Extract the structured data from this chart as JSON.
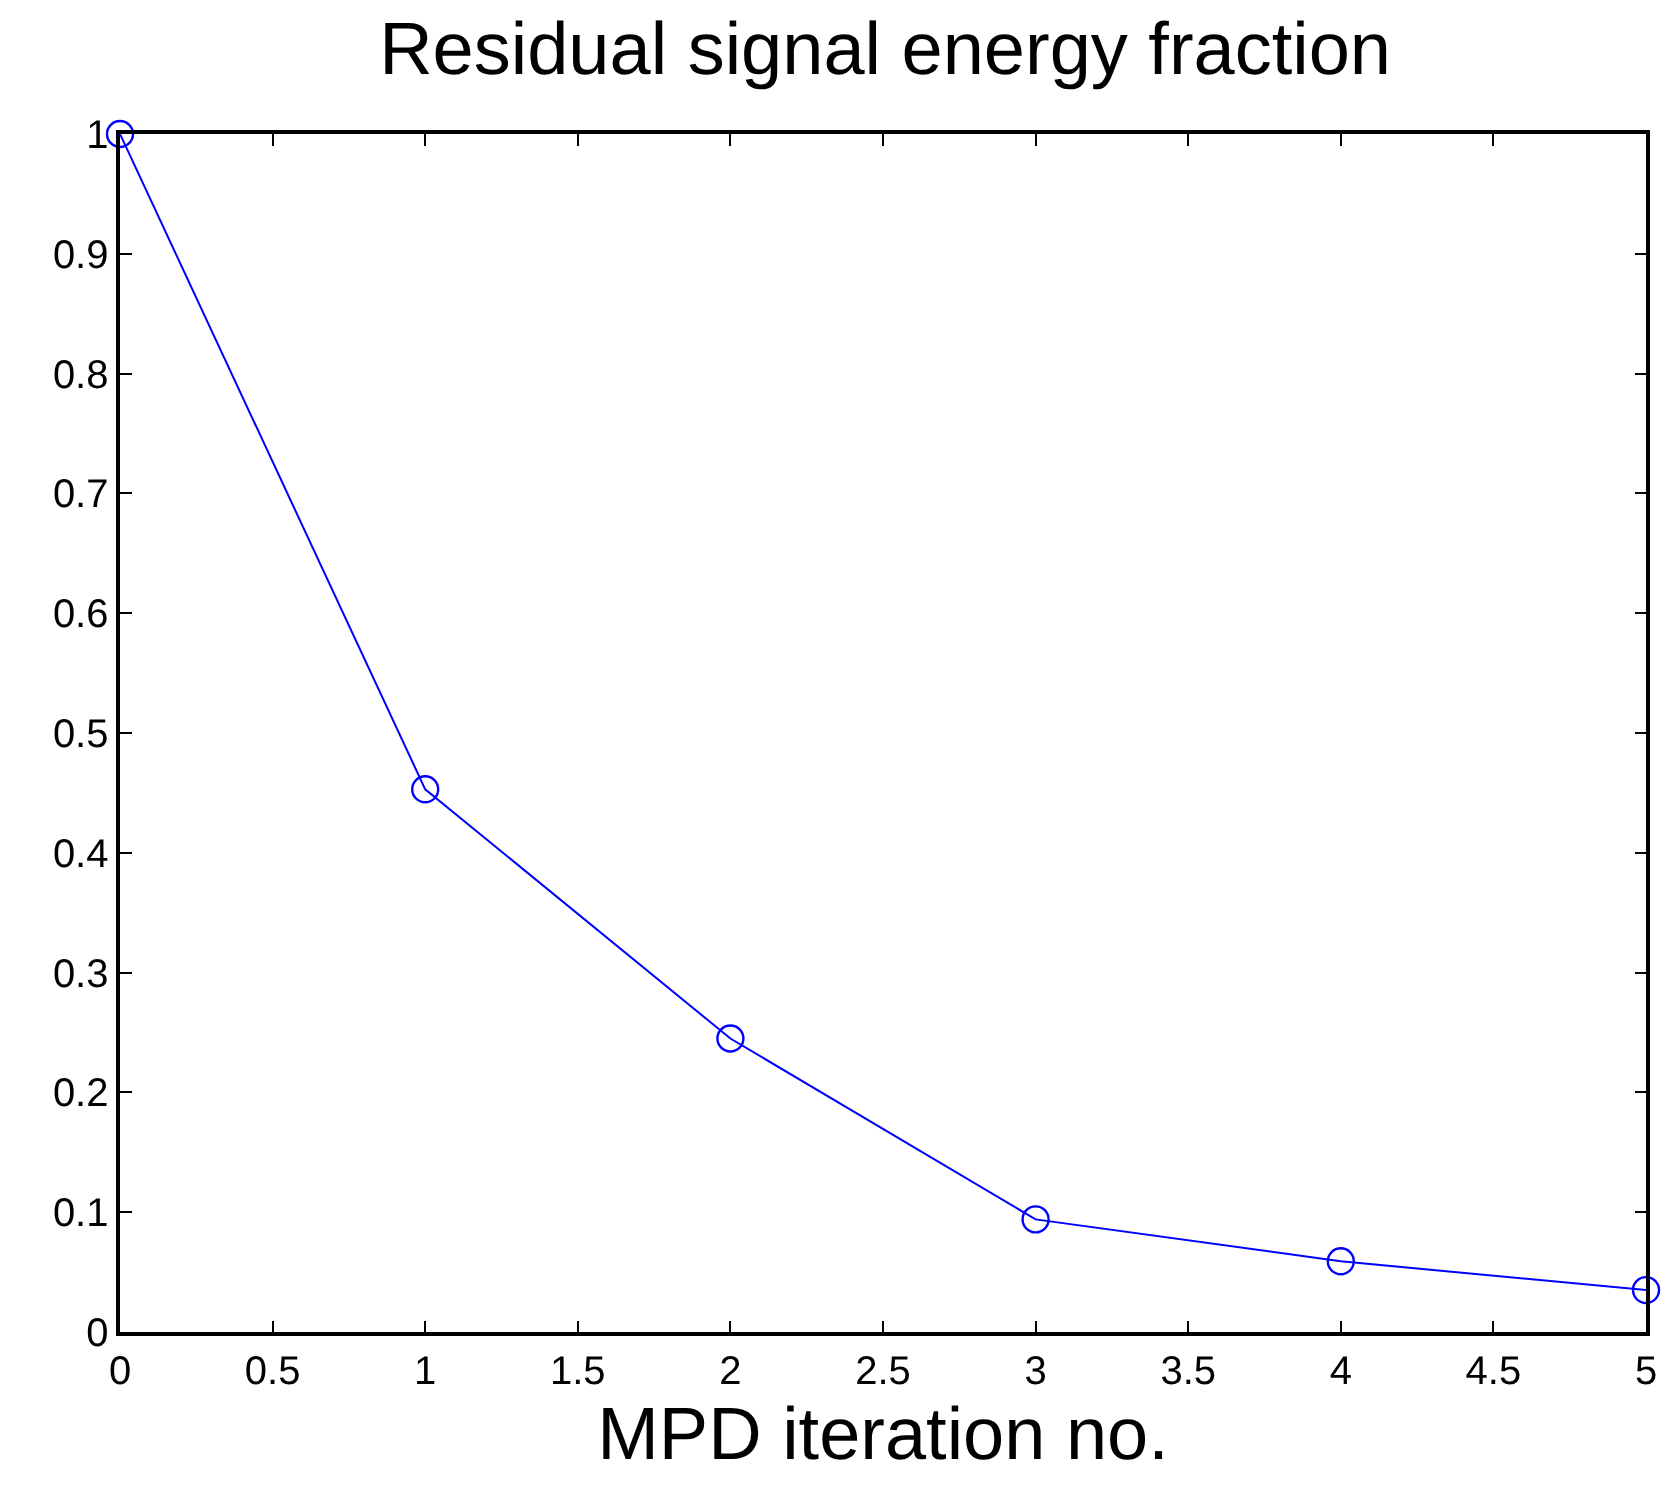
{
  "chart_data": {
    "type": "line",
    "title": "Residual signal energy fraction",
    "xlabel": "MPD iteration no.",
    "x": [
      0,
      1,
      2,
      3,
      4,
      5
    ],
    "series": [
      {
        "color": "#0000ff",
        "values": [
          1,
          0.453,
          0.245,
          0.094,
          0.059,
          0.035
        ]
      }
    ],
    "xlim": [
      0,
      5
    ],
    "xticks": [
      0,
      0.5,
      1,
      1.5,
      2,
      2.5,
      3,
      3.5,
      4,
      4.5,
      5
    ],
    "ylim": [
      0,
      1
    ],
    "yticks": [
      0,
      0.1,
      0.2,
      0.3,
      0.4,
      0.5,
      0.6,
      0.7,
      0.8,
      0.9,
      1
    ],
    "marker": "circle",
    "line_style": "solid"
  }
}
